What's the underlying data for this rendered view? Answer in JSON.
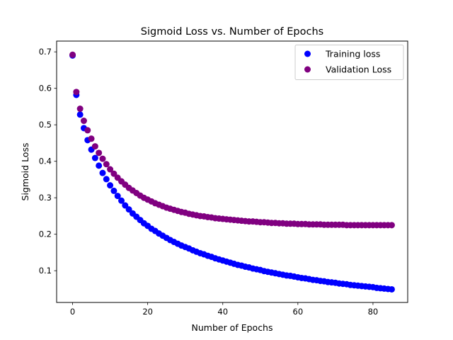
{
  "chart_data": {
    "type": "scatter",
    "title": "Sigmoid Loss vs. Number of Epochs",
    "xlabel": "Number of Epochs",
    "ylabel": "Sigmoid Loss",
    "xlim": [
      -4.25,
      89.25
    ],
    "ylim": [
      0.013,
      0.7295
    ],
    "xticks": [
      0,
      20,
      40,
      60,
      80
    ],
    "xtick_labels": [
      "0",
      "20",
      "40",
      "60",
      "80"
    ],
    "yticks": [
      0.1,
      0.2,
      0.3,
      0.4,
      0.5,
      0.6,
      0.7
    ],
    "ytick_labels": [
      "0.1",
      "0.2",
      "0.3",
      "0.4",
      "0.5",
      "0.6",
      "0.7"
    ],
    "grid": false,
    "legend_position": "upper right",
    "x": [
      0,
      1,
      2,
      3,
      4,
      5,
      6,
      7,
      8,
      9,
      10,
      11,
      12,
      13,
      14,
      15,
      16,
      17,
      18,
      19,
      20,
      21,
      22,
      23,
      24,
      25,
      26,
      27,
      28,
      29,
      30,
      31,
      32,
      33,
      34,
      35,
      36,
      37,
      38,
      39,
      40,
      41,
      42,
      43,
      44,
      45,
      46,
      47,
      48,
      49,
      50,
      51,
      52,
      53,
      54,
      55,
      56,
      57,
      58,
      59,
      60,
      61,
      62,
      63,
      64,
      65,
      66,
      67,
      68,
      69,
      70,
      71,
      72,
      73,
      74,
      75,
      76,
      77,
      78,
      79,
      80,
      81,
      82,
      83,
      84,
      85
    ],
    "series": [
      {
        "name": "Training loss",
        "color": "#0000ff",
        "values": [
          0.69,
          0.582,
          0.528,
          0.491,
          0.458,
          0.432,
          0.409,
          0.388,
          0.368,
          0.351,
          0.334,
          0.319,
          0.305,
          0.292,
          0.279,
          0.268,
          0.257,
          0.248,
          0.239,
          0.23,
          0.223,
          0.215,
          0.209,
          0.202,
          0.196,
          0.19,
          0.184,
          0.179,
          0.174,
          0.169,
          0.165,
          0.161,
          0.156,
          0.152,
          0.148,
          0.145,
          0.141,
          0.138,
          0.134,
          0.131,
          0.128,
          0.125,
          0.122,
          0.119,
          0.116,
          0.114,
          0.111,
          0.109,
          0.106,
          0.104,
          0.102,
          0.099,
          0.097,
          0.095,
          0.093,
          0.091,
          0.089,
          0.087,
          0.086,
          0.084,
          0.082,
          0.08,
          0.079,
          0.077,
          0.075,
          0.074,
          0.072,
          0.071,
          0.069,
          0.068,
          0.067,
          0.065,
          0.064,
          0.063,
          0.061,
          0.06,
          0.059,
          0.058,
          0.057,
          0.056,
          0.055,
          0.053,
          0.052,
          0.051,
          0.05,
          0.049
        ]
      },
      {
        "name": "Validation Loss",
        "color": "#800080",
        "values": [
          0.692,
          0.59,
          0.544,
          0.511,
          0.485,
          0.462,
          0.441,
          0.423,
          0.407,
          0.392,
          0.378,
          0.366,
          0.355,
          0.345,
          0.336,
          0.327,
          0.32,
          0.313,
          0.306,
          0.3,
          0.295,
          0.29,
          0.285,
          0.281,
          0.277,
          0.273,
          0.27,
          0.267,
          0.264,
          0.261,
          0.259,
          0.256,
          0.254,
          0.252,
          0.25,
          0.249,
          0.247,
          0.246,
          0.244,
          0.243,
          0.242,
          0.241,
          0.24,
          0.239,
          0.238,
          0.237,
          0.236,
          0.235,
          0.235,
          0.234,
          0.233,
          0.233,
          0.232,
          0.231,
          0.231,
          0.23,
          0.23,
          0.229,
          0.229,
          0.229,
          0.228,
          0.228,
          0.228,
          0.227,
          0.227,
          0.227,
          0.227,
          0.226,
          0.226,
          0.226,
          0.226,
          0.226,
          0.226,
          0.225,
          0.225,
          0.225,
          0.225,
          0.225,
          0.225,
          0.225,
          0.225,
          0.225,
          0.225,
          0.225,
          0.225,
          0.225
        ]
      }
    ]
  }
}
